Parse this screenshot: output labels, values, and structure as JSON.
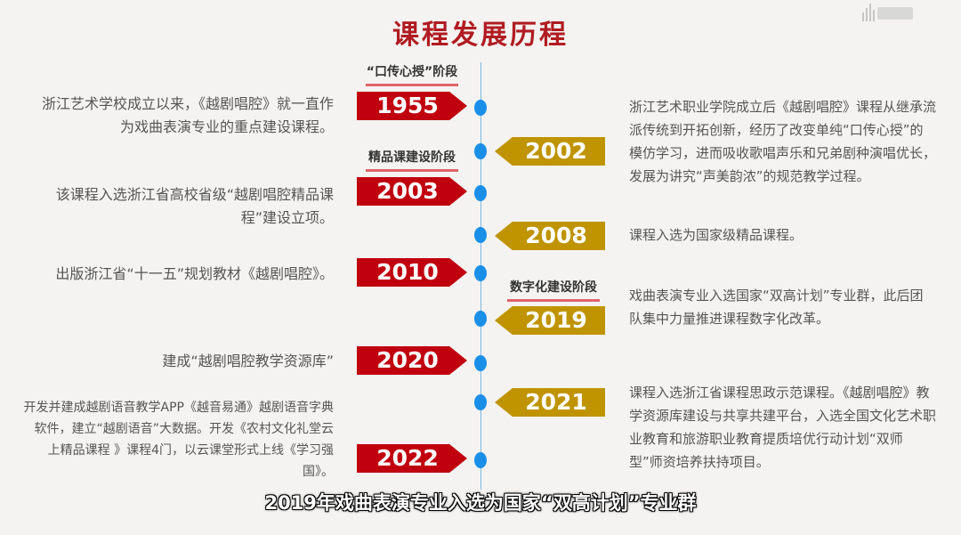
{
  "title": "课程发展历程",
  "colors": {
    "title": "#b01c22",
    "left_tag": "#c0000f",
    "right_tag": "#bf9400",
    "dot": "#1a8fe8"
  },
  "stages": [
    {
      "label": "“口传心授”阶段"
    },
    {
      "label": "精品课建设阶段"
    },
    {
      "label": "数字化建设阶段"
    }
  ],
  "events": [
    {
      "year": "1955",
      "text": "浙江艺术学校成立以来，《越剧唱腔》就一直作为戏曲表演专业的重点建设课程。"
    },
    {
      "year": "2002",
      "text": "浙江艺术职业学院成立后《越剧唱腔》课程从继承流派传统到开拓创新，经历了改变单纯“口传心授”的模仿学习，进而吸收歌唱声乐和兄弟剧种演唱优长，发展为讲究“声美韵浓”的规范教学过程。"
    },
    {
      "year": "2003",
      "text": "该课程入选浙江省高校省级“越剧唱腔精品课程”建设立项。"
    },
    {
      "year": "2008",
      "text": "课程入选为国家级精品课程。"
    },
    {
      "year": "2010",
      "text": "出版浙江省“十一五”规划教材《越剧唱腔》。"
    },
    {
      "year": "2019",
      "text": "戏曲表演专业入选国家“双高计划”专业群，此后团队集中力量推进课程数字化改革。"
    },
    {
      "year": "2020",
      "text": "建成“越剧唱腔教学资源库”"
    },
    {
      "year": "2021",
      "text": "课程入选浙江省课程思政示范课程。《越剧唱腔》教学资源库建设与共享共建平台，入选全国文化艺术职业教育和旅游职业教育提质培优行动计划“双师型”师资培养扶持项目。"
    },
    {
      "year": "2022",
      "text": "开发并建成越剧语音教学APP《越音易通》越剧语音字典软件，建立“越剧语音”大数据。开发《农村文化礼堂云上精品课程 》课程4门，以云课堂形式上线《学习强国》。"
    }
  ],
  "subtitle": "2019年戏曲表演专业入选为国家“双高计划”专业群"
}
